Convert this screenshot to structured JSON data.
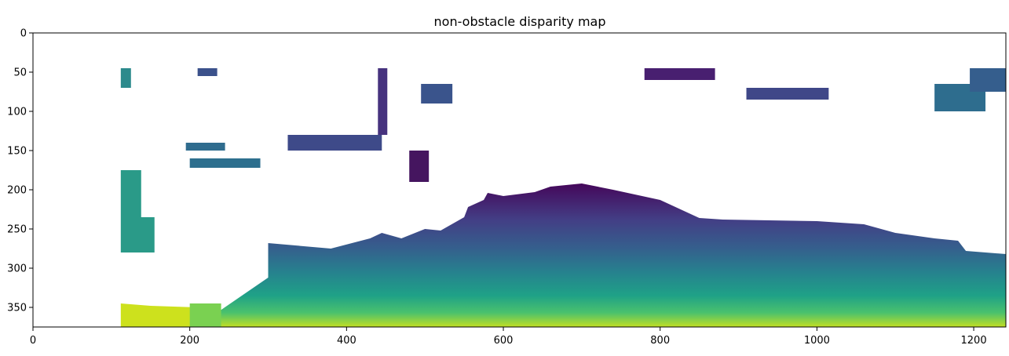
{
  "chart_data": {
    "type": "heatmap",
    "title": "non-obstacle disparity map",
    "xlabel": "",
    "ylabel": "",
    "xlim": [
      0,
      1241
    ],
    "ylim": [
      375,
      0
    ],
    "x_ticks": [
      0,
      200,
      400,
      600,
      800,
      1000,
      1200
    ],
    "y_ticks": [
      0,
      50,
      100,
      150,
      200,
      250,
      300,
      350
    ],
    "x_tick_labels": [
      "0",
      "200",
      "400",
      "600",
      "800",
      "1000",
      "1200"
    ],
    "y_tick_labels": [
      "0",
      "50",
      "100",
      "150",
      "200",
      "250",
      "300",
      "350"
    ],
    "colormap": "viridis",
    "background_color": "#ffffff",
    "grid": false,
    "regions": [
      {
        "name": "ground-surface",
        "color_rows": "row-dependent (viridis, purple at top to yellow at bottom)",
        "outline": [
          [
            260,
            265
          ],
          [
            300,
            268
          ],
          [
            380,
            275
          ],
          [
            430,
            262
          ],
          [
            445,
            255
          ],
          [
            470,
            262
          ],
          [
            500,
            250
          ],
          [
            520,
            252
          ],
          [
            550,
            235
          ],
          [
            555,
            222
          ],
          [
            575,
            213
          ],
          [
            580,
            204
          ],
          [
            600,
            208
          ],
          [
            640,
            203
          ],
          [
            660,
            196
          ],
          [
            700,
            192
          ],
          [
            740,
            200
          ],
          [
            800,
            213
          ],
          [
            850,
            236
          ],
          [
            880,
            238
          ],
          [
            1000,
            240
          ],
          [
            1060,
            244
          ],
          [
            1100,
            255
          ],
          [
            1150,
            262
          ],
          [
            1180,
            265
          ],
          [
            1190,
            278
          ],
          [
            1241,
            282
          ],
          [
            1241,
            375
          ],
          [
            200,
            375
          ],
          [
            230,
            360
          ],
          [
            300,
            312
          ],
          [
            300,
            268
          ]
        ]
      },
      {
        "name": "left-wall-patch",
        "color_rows": "green-yellow",
        "outline": [
          [
            112,
            345
          ],
          [
            150,
            348
          ],
          [
            210,
            350
          ],
          [
            230,
            360
          ],
          [
            200,
            375
          ],
          [
            112,
            375
          ]
        ]
      },
      {
        "name": "left-vertical-strip",
        "color_rows": "teal-green",
        "outline": [
          [
            112,
            175
          ],
          [
            138,
            175
          ],
          [
            138,
            235
          ],
          [
            155,
            235
          ],
          [
            155,
            280
          ],
          [
            112,
            280
          ]
        ]
      },
      {
        "name": "left-upper-strip",
        "color_rows": "teal",
        "outline": [
          [
            112,
            45
          ],
          [
            125,
            45
          ],
          [
            125,
            70
          ],
          [
            112,
            70
          ]
        ]
      },
      {
        "name": "left-low-blob",
        "color_rows": "green",
        "outline": [
          [
            200,
            345
          ],
          [
            240,
            345
          ],
          [
            240,
            375
          ],
          [
            200,
            375
          ]
        ]
      },
      {
        "name": "mid-strip-150",
        "color_rows": "dark blue",
        "outline": [
          [
            195,
            140
          ],
          [
            245,
            140
          ],
          [
            245,
            150
          ],
          [
            195,
            150
          ]
        ]
      },
      {
        "name": "mid-strip-165",
        "color_rows": "dark blue",
        "outline": [
          [
            200,
            160
          ],
          [
            290,
            160
          ],
          [
            290,
            172
          ],
          [
            200,
            172
          ]
        ]
      },
      {
        "name": "upper-blob-220",
        "color_rows": "dark blue",
        "outline": [
          [
            210,
            45
          ],
          [
            235,
            45
          ],
          [
            235,
            55
          ],
          [
            210,
            55
          ]
        ]
      },
      {
        "name": "blob-140",
        "color_rows": "dark blue",
        "outline": [
          [
            325,
            130
          ],
          [
            445,
            130
          ],
          [
            445,
            150
          ],
          [
            325,
            150
          ]
        ]
      },
      {
        "name": "blob-thin-vertical",
        "color_rows": "purple",
        "outline": [
          [
            440,
            45
          ],
          [
            452,
            45
          ],
          [
            452,
            130
          ],
          [
            440,
            130
          ]
        ]
      },
      {
        "name": "blob-470",
        "color_rows": "purple",
        "outline": [
          [
            480,
            150
          ],
          [
            505,
            150
          ],
          [
            505,
            190
          ],
          [
            480,
            190
          ]
        ]
      },
      {
        "name": "blob-500-75",
        "color_rows": "dark blue",
        "outline": [
          [
            495,
            65
          ],
          [
            535,
            65
          ],
          [
            535,
            90
          ],
          [
            495,
            90
          ]
        ]
      },
      {
        "name": "blob-790",
        "color_rows": "purple",
        "outline": [
          [
            780,
            45
          ],
          [
            870,
            45
          ],
          [
            870,
            60
          ],
          [
            780,
            60
          ]
        ]
      },
      {
        "name": "blob-950-75",
        "color_rows": "dark blue",
        "outline": [
          [
            910,
            70
          ],
          [
            1015,
            70
          ],
          [
            1015,
            85
          ],
          [
            910,
            85
          ]
        ]
      },
      {
        "name": "blob-1200-80",
        "color_rows": "blue",
        "outline": [
          [
            1150,
            65
          ],
          [
            1215,
            65
          ],
          [
            1215,
            100
          ],
          [
            1150,
            100
          ]
        ]
      },
      {
        "name": "blob-1230-60",
        "color_rows": "blue",
        "outline": [
          [
            1195,
            45
          ],
          [
            1241,
            45
          ],
          [
            1241,
            75
          ],
          [
            1195,
            75
          ]
        ]
      }
    ]
  }
}
